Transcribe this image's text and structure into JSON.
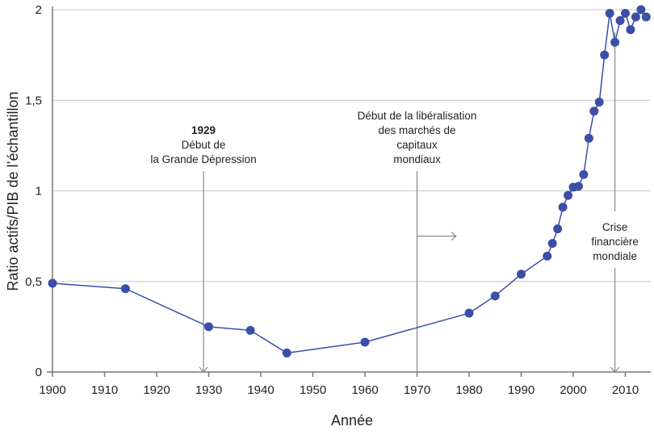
{
  "chart_data": {
    "type": "line",
    "xlabel": "Année",
    "ylabel": "Ratio actifs/PIB de l’échantillon",
    "xlim": [
      1900,
      2016
    ],
    "ylim": [
      0,
      2
    ],
    "x_ticks": [
      "1900",
      "1910",
      "1920",
      "1930",
      "1940",
      "1950",
      "1960",
      "1970",
      "1980",
      "1990",
      "2000",
      "2010"
    ],
    "y_ticks": [
      "0",
      "0,5",
      "1",
      "1,5",
      "2"
    ],
    "grid": "horizontal",
    "color": "#3b4fa8",
    "series": [
      {
        "x": [
          1900,
          1914,
          1930,
          1938,
          1945,
          1960,
          1980,
          1985,
          1990,
          1995,
          1996,
          1997,
          1998,
          1999,
          2000,
          2001,
          2002,
          2003,
          2004,
          2005,
          2006,
          2007,
          2008,
          2009,
          2010,
          2011,
          2012,
          2013,
          2014
        ],
        "y": [
          0.49,
          0.46,
          0.25,
          0.23,
          0.105,
          0.165,
          0.325,
          0.42,
          0.54,
          0.64,
          0.71,
          0.79,
          0.91,
          0.975,
          1.02,
          1.025,
          1.09,
          1.29,
          1.44,
          1.49,
          1.75,
          1.98,
          1.82,
          1.94,
          1.98,
          1.89,
          1.96,
          2.0,
          1.96
        ]
      }
    ],
    "annotations": [
      {
        "year": 1929,
        "lines": [
          "1929",
          "Début de",
          "la Grande Dépression"
        ]
      },
      {
        "year": 1970,
        "lines": [
          "Début de la libéralisation",
          "des marchés de",
          "capitaux",
          "mondiaux"
        ]
      },
      {
        "year": 2008,
        "lines": [
          "Crise",
          "financière",
          "mondiale"
        ]
      }
    ]
  }
}
